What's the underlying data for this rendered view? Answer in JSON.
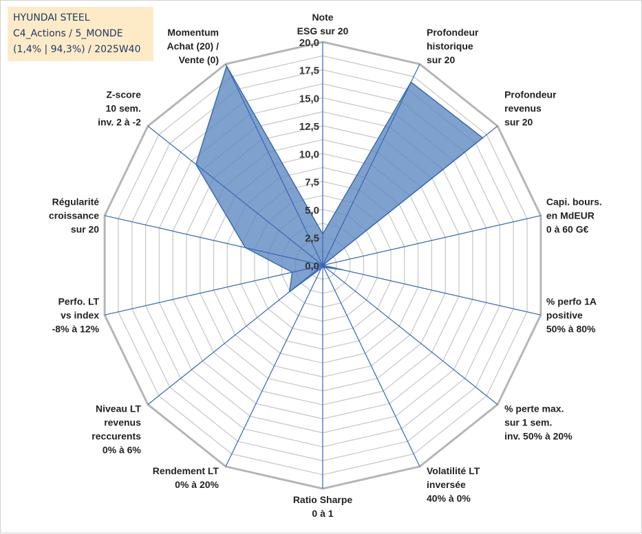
{
  "info_box": {
    "line1": "HYUNDAI STEEL",
    "line2": "C4_Actions / 5_MONDE",
    "line3": "(1,4% | 94,3%) / 2025W40"
  },
  "colors": {
    "area_fill": "#5b86c0",
    "area_stroke": "#3d6bb0",
    "spoke": "#3465b5",
    "grid": "#c9c9c9",
    "info_box_bg": "#fdebc8"
  },
  "chart_data": {
    "type": "radar",
    "title": "",
    "rmin": 0,
    "rmax": 20,
    "tick_values": [
      0,
      2.5,
      5,
      7.5,
      10,
      12.5,
      15,
      17.5,
      20
    ],
    "tick_labels": [
      "0,0",
      "2,5",
      "5,0",
      "7,5",
      "10,0",
      "12,5",
      "15,0",
      "17,5",
      "20,0"
    ],
    "grid": true,
    "legend": "none",
    "axes": [
      {
        "label": [
          "Note",
          "ESG sur 20"
        ],
        "value": 2.8
      },
      {
        "label": [
          "Profondeur",
          "historique",
          "sur 20"
        ],
        "value": 18.2
      },
      {
        "label": [
          "Profondeur",
          "revenus",
          "sur 20"
        ],
        "value": 18.3
      },
      {
        "label": [
          "Capi. bours.",
          "en MdEUR",
          "0 à 60 G€"
        ],
        "value": 0
      },
      {
        "label": [
          "% perfo 1A",
          "positive",
          "50% à 80%"
        ],
        "value": 1.8
      },
      {
        "label": [
          "% perte max.",
          "sur 1 sem.",
          "inv. 50% à 20%"
        ],
        "value": 0.3
      },
      {
        "label": [
          "Volatilité LT",
          "inversée",
          "40% à 0%"
        ],
        "value": 0.3
      },
      {
        "label": [
          "Ratio Sharpe",
          "0 à 1"
        ],
        "value": 0
      },
      {
        "label": [
          "Rendement LT",
          "0% à 20%"
        ],
        "value": 0.3
      },
      {
        "label": [
          "Niveau LT",
          "revenus",
          "reccurents",
          "0% à 6%"
        ],
        "value": 3.8
      },
      {
        "label": [
          "Perfo. LT",
          "vs index",
          "-8% à 12%"
        ],
        "value": 2.8
      },
      {
        "label": [
          "Régularité",
          "croissance",
          "sur 20"
        ],
        "value": 7.1
      },
      {
        "label": [
          "Z-score",
          "10 sem.",
          "inv. 2 à -2"
        ],
        "value": 14.5
      },
      {
        "label": [
          "Momentum",
          "Achat (20) /",
          "Vente (0)"
        ],
        "value": 19.8
      }
    ]
  }
}
